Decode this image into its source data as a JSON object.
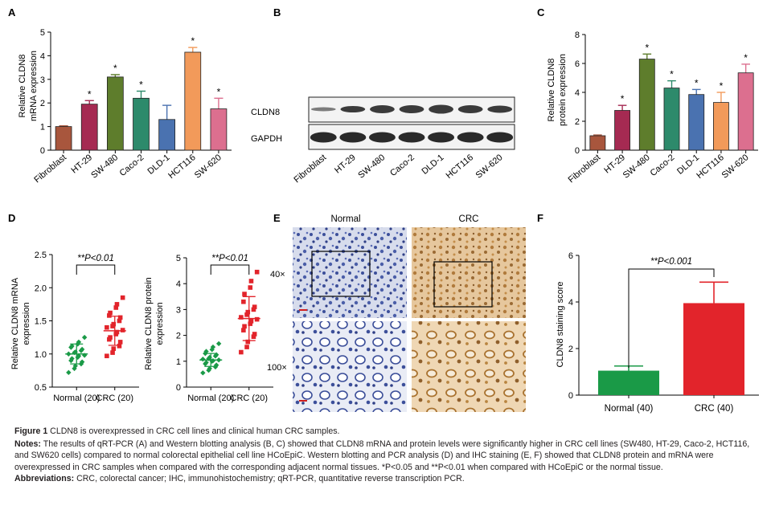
{
  "panels": {
    "A": {
      "letter": "A",
      "ylabel": [
        "Relative CLDN8",
        "mRNA expression"
      ],
      "ylim": [
        0,
        5
      ],
      "yticks": [
        "0",
        "1",
        "2",
        "3",
        "4",
        "5"
      ],
      "sig": "*",
      "chart_data": {
        "type": "bar",
        "categories": [
          "Fibroblast",
          "HT-29",
          "SW-480",
          "Caco-2",
          "DLD-1",
          "HCT116",
          "SW-620"
        ],
        "values": [
          1.0,
          1.95,
          3.1,
          2.2,
          1.3,
          4.15,
          1.75
        ],
        "errors": [
          0.03,
          0.15,
          0.1,
          0.3,
          0.6,
          0.2,
          0.45
        ],
        "significant": [
          false,
          true,
          true,
          true,
          false,
          true,
          true
        ],
        "colors": [
          "#a8563d",
          "#a52a52",
          "#5e7d2c",
          "#2d8a6b",
          "#4a72b0",
          "#f29a5a",
          "#dc6f8f"
        ],
        "ylim": [
          0,
          5
        ]
      }
    },
    "B": {
      "letter": "B",
      "bands": [
        "CLDN8",
        "GAPDH"
      ],
      "lanes": [
        "Fibroblast",
        "HT-29",
        "SW-480",
        "Caco-2",
        "DLD-1",
        "HCT116",
        "SW-620"
      ]
    },
    "C": {
      "letter": "C",
      "ylabel": [
        "Relative CLDN8",
        "protein expression"
      ],
      "ylim": [
        0,
        8
      ],
      "yticks": [
        "0",
        "2",
        "4",
        "6",
        "8"
      ],
      "sig": "*",
      "chart_data": {
        "type": "bar",
        "categories": [
          "Fibroblast",
          "HT-29",
          "SW-480",
          "Caco-2",
          "DLD-1",
          "HCT116",
          "SW-620"
        ],
        "values": [
          1.0,
          2.75,
          6.3,
          4.3,
          3.85,
          3.3,
          5.35
        ],
        "errors": [
          0.05,
          0.35,
          0.35,
          0.5,
          0.35,
          0.7,
          0.6
        ],
        "significant": [
          false,
          true,
          true,
          true,
          true,
          true,
          true
        ],
        "colors": [
          "#a8563d",
          "#a52a52",
          "#5e7d2c",
          "#2d8a6b",
          "#4a72b0",
          "#f29a5a",
          "#dc6f8f"
        ],
        "ylim": [
          0,
          8
        ]
      }
    },
    "D": {
      "letter": "D",
      "left": {
        "ylabel": [
          "Relative CLDN8 mRNA",
          "expression"
        ],
        "ylim": [
          0.5,
          2.5
        ],
        "yticks": [
          "0.5",
          "1.0",
          "1.5",
          "2.0",
          "2.5"
        ],
        "sig": "**P<0.01",
        "groups": [
          "Normal (20)",
          "CRC (20)"
        ],
        "chart_data": {
          "type": "scatter",
          "groups": [
            "Normal (20)",
            "CRC (20)"
          ],
          "colors": [
            "#1a9a47",
            "#e2242b"
          ],
          "means": [
            1.0,
            1.35
          ],
          "sd": [
            0.15,
            0.22
          ],
          "points": [
            [
              0.72,
              0.78,
              0.82,
              0.85,
              0.88,
              0.9,
              0.93,
              0.95,
              0.97,
              0.98,
              1.0,
              1.02,
              1.03,
              1.05,
              1.07,
              1.1,
              1.12,
              1.15,
              1.18,
              1.25
            ],
            [
              0.97,
              1.02,
              1.08,
              1.12,
              1.18,
              1.22,
              1.25,
              1.3,
              1.33,
              1.36,
              1.4,
              1.42,
              1.45,
              1.5,
              1.55,
              1.58,
              1.62,
              1.7,
              1.75,
              1.85
            ]
          ],
          "ylim": [
            0.5,
            2.5
          ]
        }
      },
      "right": {
        "ylabel": [
          "Relative CLDN8 protein",
          "expression"
        ],
        "ylim": [
          0,
          5
        ],
        "yticks": [
          "0",
          "1",
          "2",
          "3",
          "4",
          "5"
        ],
        "sig": "**P<0.01",
        "groups": [
          "Normal (20)",
          "CRC (20)"
        ],
        "chart_data": {
          "type": "scatter",
          "groups": [
            "Normal (20)",
            "CRC (20)"
          ],
          "colors": [
            "#1a9a47",
            "#e2242b"
          ],
          "means": [
            1.05,
            2.65
          ],
          "sd": [
            0.25,
            0.85
          ],
          "points": [
            [
              0.55,
              0.65,
              0.72,
              0.78,
              0.85,
              0.9,
              0.95,
              1.0,
              1.02,
              1.05,
              1.08,
              1.1,
              1.15,
              1.2,
              1.25,
              1.3,
              1.38,
              1.45,
              1.55,
              1.68
            ],
            [
              1.35,
              1.55,
              1.75,
              1.95,
              2.05,
              2.2,
              2.35,
              2.45,
              2.55,
              2.62,
              2.7,
              2.8,
              2.9,
              3.0,
              3.1,
              3.3,
              3.6,
              3.85,
              4.1,
              4.45
            ]
          ],
          "ylim": [
            0,
            5
          ]
        }
      }
    },
    "E": {
      "letter": "E",
      "columns": [
        "Normal",
        "CRC"
      ],
      "rows": [
        "40×",
        "100×"
      ]
    },
    "F": {
      "letter": "F",
      "ylabel": "CLDN8 staining score",
      "ylim": [
        0,
        6
      ],
      "yticks": [
        "0",
        "2",
        "4",
        "6"
      ],
      "sig": "**P<0.001",
      "chart_data": {
        "type": "bar",
        "categories": [
          "Normal (40)",
          "CRC (40)"
        ],
        "values": [
          1.05,
          3.95
        ],
        "errors": [
          0.2,
          0.9
        ],
        "colors": [
          "#1a9a47",
          "#e2242b"
        ],
        "ylim": [
          0,
          6
        ]
      }
    }
  },
  "caption": {
    "figure_label": "Figure 1",
    "title": "CLDN8 is overexpressed in CRC cell lines and clinical human CRC samples.",
    "notes_label": "Notes:",
    "notes_text": "The results of qRT-PCR (A) and Western blotting analysis (B, C) showed that CLDN8 mRNA and protein levels were significantly higher in CRC cell lines (SW480, HT-29, Caco-2, HCT116, and SW620 cells) compared to normal colorectal epithelial cell line HCoEpiC. Western blotting and PCR analysis (D) and IHC staining (E, F) showed that CLDN8 protein and mRNA were overexpressed in CRC samples when compared with the corresponding adjacent normal tissues. *P<0.05 and **P<0.01 when compared with HCoEpiC or the normal tissue.",
    "abbrev_label": "Abbreviations:",
    "abbrev_text": "CRC, colorectal cancer; IHC, immunohistochemistry; qRT-PCR, quantitative reverse transcription PCR."
  }
}
